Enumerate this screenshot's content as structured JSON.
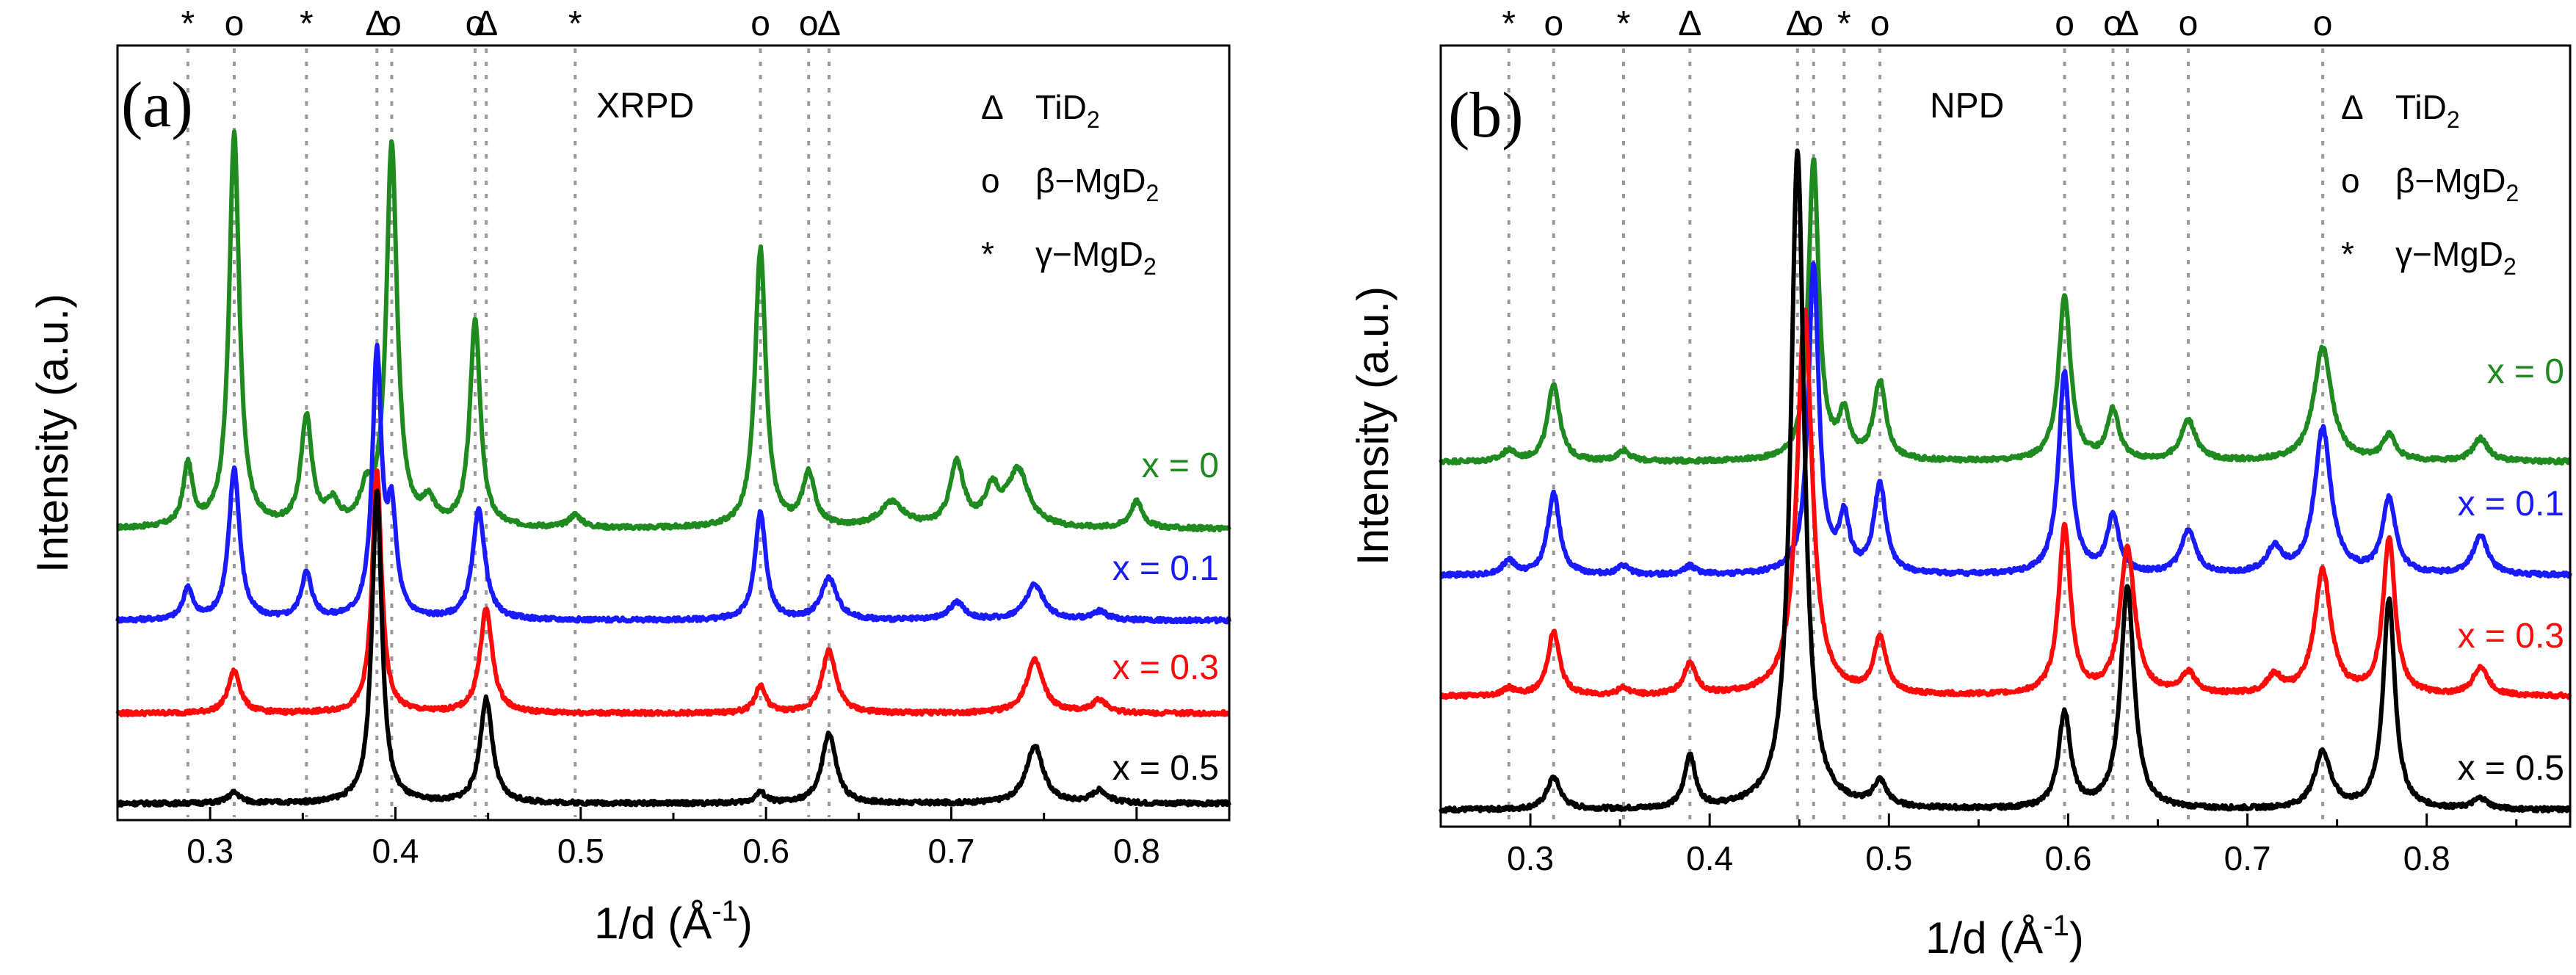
{
  "chart_data": [
    {
      "type": "line",
      "panel_label": "(a)",
      "technique": "XRPD",
      "xlabel": "1/d (Å",
      "xlabel_sup": "-1",
      "xlabel_end": ")",
      "ylabel": "Intensity (a.u.)",
      "xlim": [
        0.25,
        0.85
      ],
      "ylim": [
        0,
        1
      ],
      "xticks": [
        0.3,
        0.4,
        0.5,
        0.6,
        0.7,
        0.8
      ],
      "xtick_labels": [
        "0.3",
        "0.4",
        "0.5",
        "0.6",
        "0.7",
        "0.8"
      ],
      "grid": false,
      "reference_lines": [
        0.288,
        0.313,
        0.352,
        0.39,
        0.398,
        0.443,
        0.449,
        0.497,
        0.597,
        0.623,
        0.634
      ],
      "top_markers": [
        {
          "x": 0.288,
          "symbol": "*"
        },
        {
          "x": 0.313,
          "symbol": "o"
        },
        {
          "x": 0.352,
          "symbol": "*"
        },
        {
          "x": 0.39,
          "symbol": "Δ"
        },
        {
          "x": 0.398,
          "symbol": "o"
        },
        {
          "x": 0.443,
          "symbol": "o"
        },
        {
          "x": 0.449,
          "symbol": "Δ"
        },
        {
          "x": 0.497,
          "symbol": "*"
        },
        {
          "x": 0.597,
          "symbol": "o"
        },
        {
          "x": 0.623,
          "symbol": "o"
        },
        {
          "x": 0.634,
          "symbol": "Δ"
        }
      ],
      "legend": [
        {
          "symbol": "Δ",
          "label": "TiD",
          "sub": "2"
        },
        {
          "symbol": "o",
          "label": "β−MgD",
          "sub": "2"
        },
        {
          "symbol": "*",
          "label": "γ−MgD",
          "sub": "2"
        }
      ],
      "series": [
        {
          "name": "x = 0",
          "color": "#1f8a1f",
          "baseline": 0.405,
          "peaks": [
            {
              "x": 0.288,
              "h": 0.087,
              "w": 0.003
            },
            {
              "x": 0.313,
              "h": 0.558,
              "w": 0.0033
            },
            {
              "x": 0.352,
              "h": 0.155,
              "w": 0.0035
            },
            {
              "x": 0.366,
              "h": 0.03,
              "w": 0.004
            },
            {
              "x": 0.384,
              "h": 0.04,
              "w": 0.0035
            },
            {
              "x": 0.398,
              "h": 0.545,
              "w": 0.0035
            },
            {
              "x": 0.418,
              "h": 0.03,
              "w": 0.004
            },
            {
              "x": 0.443,
              "h": 0.295,
              "w": 0.0033
            },
            {
              "x": 0.497,
              "h": 0.018,
              "w": 0.004
            },
            {
              "x": 0.597,
              "h": 0.396,
              "w": 0.0035
            },
            {
              "x": 0.623,
              "h": 0.075,
              "w": 0.004
            },
            {
              "x": 0.668,
              "h": 0.035,
              "w": 0.008
            },
            {
              "x": 0.703,
              "h": 0.09,
              "w": 0.0045
            },
            {
              "x": 0.722,
              "h": 0.05,
              "w": 0.0045
            },
            {
              "x": 0.736,
              "h": 0.08,
              "w": 0.007
            },
            {
              "x": 0.8,
              "h": 0.038,
              "w": 0.004
            }
          ]
        },
        {
          "name": "x = 0.1",
          "color": "#1a1aff",
          "baseline": 0.275,
          "peaks": [
            {
              "x": 0.288,
              "h": 0.045,
              "w": 0.003
            },
            {
              "x": 0.313,
              "h": 0.215,
              "w": 0.0035
            },
            {
              "x": 0.352,
              "h": 0.065,
              "w": 0.0035
            },
            {
              "x": 0.39,
              "h": 0.37,
              "w": 0.003
            },
            {
              "x": 0.398,
              "h": 0.14,
              "w": 0.003
            },
            {
              "x": 0.445,
              "h": 0.155,
              "w": 0.004
            },
            {
              "x": 0.597,
              "h": 0.153,
              "w": 0.0035
            },
            {
              "x": 0.634,
              "h": 0.06,
              "w": 0.005
            },
            {
              "x": 0.703,
              "h": 0.025,
              "w": 0.005
            },
            {
              "x": 0.745,
              "h": 0.05,
              "w": 0.006
            },
            {
              "x": 0.78,
              "h": 0.012,
              "w": 0.005
            }
          ]
        },
        {
          "name": "x = 0.3",
          "color": "#ff0a0a",
          "baseline": 0.143,
          "peaks": [
            {
              "x": 0.313,
              "h": 0.06,
              "w": 0.004
            },
            {
              "x": 0.39,
              "h": 0.345,
              "w": 0.003
            },
            {
              "x": 0.449,
              "h": 0.148,
              "w": 0.004
            },
            {
              "x": 0.597,
              "h": 0.038,
              "w": 0.0035
            },
            {
              "x": 0.634,
              "h": 0.09,
              "w": 0.0045
            },
            {
              "x": 0.745,
              "h": 0.075,
              "w": 0.0055
            },
            {
              "x": 0.78,
              "h": 0.018,
              "w": 0.005
            }
          ]
        },
        {
          "name": "x = 0.5",
          "color": "#000000",
          "baseline": 0.015,
          "peaks": [
            {
              "x": 0.313,
              "h": 0.015,
              "w": 0.004
            },
            {
              "x": 0.39,
              "h": 0.447,
              "w": 0.0032
            },
            {
              "x": 0.449,
              "h": 0.148,
              "w": 0.004
            },
            {
              "x": 0.597,
              "h": 0.015,
              "w": 0.0035
            },
            {
              "x": 0.634,
              "h": 0.1,
              "w": 0.0045
            },
            {
              "x": 0.745,
              "h": 0.082,
              "w": 0.0055
            },
            {
              "x": 0.78,
              "h": 0.018,
              "w": 0.005
            }
          ]
        }
      ]
    },
    {
      "type": "line",
      "panel_label": "(b)",
      "technique": "NPD",
      "xlabel": "1/d (Å",
      "xlabel_sup": "-1",
      "xlabel_end": ")",
      "ylabel": "Intensity (a.u.)",
      "xlim": [
        0.25,
        0.88
      ],
      "ylim": [
        0,
        1
      ],
      "xticks": [
        0.3,
        0.4,
        0.5,
        0.6,
        0.7,
        0.8
      ],
      "xtick_labels": [
        "0.3",
        "0.4",
        "0.5",
        "0.6",
        "0.7",
        "0.8"
      ],
      "grid": false,
      "reference_lines": [
        0.288,
        0.313,
        0.352,
        0.389,
        0.449,
        0.458,
        0.475,
        0.495,
        0.598,
        0.625,
        0.633,
        0.667,
        0.742
      ],
      "top_markers": [
        {
          "x": 0.288,
          "symbol": "*"
        },
        {
          "x": 0.313,
          "symbol": "o"
        },
        {
          "x": 0.352,
          "symbol": "*"
        },
        {
          "x": 0.389,
          "symbol": "Δ"
        },
        {
          "x": 0.449,
          "symbol": "Δ"
        },
        {
          "x": 0.458,
          "symbol": "o"
        },
        {
          "x": 0.475,
          "symbol": "*"
        },
        {
          "x": 0.495,
          "symbol": "o"
        },
        {
          "x": 0.598,
          "symbol": "o"
        },
        {
          "x": 0.625,
          "symbol": "o"
        },
        {
          "x": 0.633,
          "symbol": "Δ"
        },
        {
          "x": 0.667,
          "symbol": "o"
        },
        {
          "x": 0.742,
          "symbol": "o"
        }
      ],
      "legend": [
        {
          "symbol": "Δ",
          "label": "TiD",
          "sub": "2"
        },
        {
          "symbol": "o",
          "label": "β−MgD",
          "sub": "2"
        },
        {
          "symbol": "*",
          "label": "γ−MgD",
          "sub": "2"
        }
      ],
      "series": [
        {
          "name": "x = 0",
          "color": "#1f8a1f",
          "baseline": 0.505,
          "peaks": [
            {
              "x": 0.288,
              "h": 0.015,
              "w": 0.004
            },
            {
              "x": 0.313,
              "h": 0.11,
              "w": 0.004
            },
            {
              "x": 0.352,
              "h": 0.015,
              "w": 0.004
            },
            {
              "x": 0.458,
              "h": 0.423,
              "w": 0.0035
            },
            {
              "x": 0.475,
              "h": 0.06,
              "w": 0.0035
            },
            {
              "x": 0.495,
              "h": 0.11,
              "w": 0.004
            },
            {
              "x": 0.598,
              "h": 0.232,
              "w": 0.004
            },
            {
              "x": 0.625,
              "h": 0.07,
              "w": 0.004
            },
            {
              "x": 0.667,
              "h": 0.057,
              "w": 0.005
            },
            {
              "x": 0.742,
              "h": 0.16,
              "w": 0.006
            },
            {
              "x": 0.779,
              "h": 0.035,
              "w": 0.0045
            },
            {
              "x": 0.83,
              "h": 0.032,
              "w": 0.005
            }
          ]
        },
        {
          "name": "x = 0.1",
          "color": "#1a1aff",
          "baseline": 0.345,
          "peaks": [
            {
              "x": 0.288,
              "h": 0.02,
              "w": 0.004
            },
            {
              "x": 0.313,
              "h": 0.115,
              "w": 0.004
            },
            {
              "x": 0.352,
              "h": 0.012,
              "w": 0.004
            },
            {
              "x": 0.389,
              "h": 0.012,
              "w": 0.004
            },
            {
              "x": 0.458,
              "h": 0.435,
              "w": 0.0035
            },
            {
              "x": 0.475,
              "h": 0.075,
              "w": 0.0035
            },
            {
              "x": 0.495,
              "h": 0.125,
              "w": 0.004
            },
            {
              "x": 0.598,
              "h": 0.285,
              "w": 0.004
            },
            {
              "x": 0.625,
              "h": 0.08,
              "w": 0.004
            },
            {
              "x": 0.667,
              "h": 0.06,
              "w": 0.005
            },
            {
              "x": 0.715,
              "h": 0.035,
              "w": 0.005
            },
            {
              "x": 0.742,
              "h": 0.205,
              "w": 0.0055
            },
            {
              "x": 0.779,
              "h": 0.105,
              "w": 0.0045
            },
            {
              "x": 0.83,
              "h": 0.055,
              "w": 0.005
            }
          ]
        },
        {
          "name": "x = 0.3",
          "color": "#ff0a0a",
          "baseline": 0.175,
          "peaks": [
            {
              "x": 0.288,
              "h": 0.01,
              "w": 0.004
            },
            {
              "x": 0.313,
              "h": 0.09,
              "w": 0.004
            },
            {
              "x": 0.352,
              "h": 0.01,
              "w": 0.004
            },
            {
              "x": 0.389,
              "h": 0.045,
              "w": 0.004
            },
            {
              "x": 0.453,
              "h": 0.545,
              "w": 0.005
            },
            {
              "x": 0.495,
              "h": 0.08,
              "w": 0.004
            },
            {
              "x": 0.598,
              "h": 0.235,
              "w": 0.004
            },
            {
              "x": 0.633,
              "h": 0.205,
              "w": 0.005
            },
            {
              "x": 0.667,
              "h": 0.03,
              "w": 0.005
            },
            {
              "x": 0.715,
              "h": 0.025,
              "w": 0.005
            },
            {
              "x": 0.742,
              "h": 0.175,
              "w": 0.0055
            },
            {
              "x": 0.779,
              "h": 0.22,
              "w": 0.004
            },
            {
              "x": 0.83,
              "h": 0.04,
              "w": 0.005
            }
          ]
        },
        {
          "name": "x = 0.5",
          "color": "#000000",
          "baseline": 0.015,
          "peaks": [
            {
              "x": 0.313,
              "h": 0.045,
              "w": 0.0045
            },
            {
              "x": 0.389,
              "h": 0.075,
              "w": 0.0035
            },
            {
              "x": 0.449,
              "h": 0.925,
              "w": 0.0045
            },
            {
              "x": 0.495,
              "h": 0.035,
              "w": 0.0045
            },
            {
              "x": 0.598,
              "h": 0.135,
              "w": 0.004
            },
            {
              "x": 0.633,
              "h": 0.315,
              "w": 0.0045
            },
            {
              "x": 0.742,
              "h": 0.08,
              "w": 0.0055
            },
            {
              "x": 0.779,
              "h": 0.295,
              "w": 0.004
            },
            {
              "x": 0.83,
              "h": 0.015,
              "w": 0.005
            }
          ]
        }
      ]
    }
  ]
}
